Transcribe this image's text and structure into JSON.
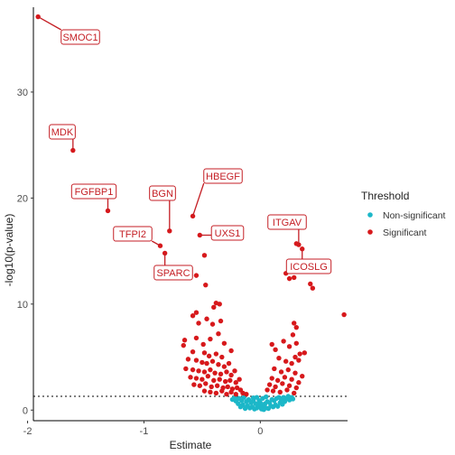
{
  "chart_data": {
    "type": "scatter",
    "title": "",
    "xlabel": "Estimate",
    "ylabel": "-log10(p-value)",
    "xlim": [
      -1.95,
      0.75
    ],
    "ylim": [
      -1.0,
      38.0
    ],
    "x_ticks": [
      -2,
      -1,
      0
    ],
    "y_ticks": [
      0,
      10,
      20,
      30
    ],
    "threshold_y": 1.3,
    "legend": {
      "title": "Threshold",
      "position": "right",
      "items": [
        {
          "label": "Non-significant",
          "color": "#1CB7C8"
        },
        {
          "label": "Significant",
          "color": "#D7191C"
        }
      ]
    },
    "colors": {
      "significant": "#D7191C",
      "non_significant": "#1CB7C8",
      "label_text": "#C41E24",
      "label_border": "#C41E24",
      "axis": "#000000"
    },
    "labeled_points": [
      {
        "label": "SMOC1",
        "x": -1.91,
        "y": 37.1
      },
      {
        "label": "MDK",
        "x": -1.61,
        "y": 24.5
      },
      {
        "label": "FGFBP1",
        "x": -1.31,
        "y": 18.8
      },
      {
        "label": "BGN",
        "x": -0.78,
        "y": 16.9
      },
      {
        "label": "HBEGF",
        "x": -0.58,
        "y": 18.3
      },
      {
        "label": "TFPI2",
        "x": -0.86,
        "y": 15.5
      },
      {
        "label": "SPARC",
        "x": -0.82,
        "y": 14.8
      },
      {
        "label": "UXS1",
        "x": -0.52,
        "y": 16.5
      },
      {
        "label": "ITGAV",
        "x": 0.33,
        "y": 15.6
      },
      {
        "label": "ICOSLG",
        "x": 0.36,
        "y": 15.2
      }
    ],
    "significant_points": [
      [
        -0.38,
        10.1
      ],
      [
        -0.35,
        10.0
      ],
      [
        -0.4,
        9.7
      ],
      [
        -0.34,
        8.4
      ],
      [
        -0.36,
        7.2
      ],
      [
        -0.55,
        9.2
      ],
      [
        -0.58,
        8.9
      ],
      [
        -0.46,
        8.6
      ],
      [
        -0.53,
        8.2
      ],
      [
        -0.41,
        8.1
      ],
      [
        -0.65,
        6.6
      ],
      [
        -0.66,
        6.1
      ],
      [
        -0.55,
        6.8
      ],
      [
        -0.49,
        6.2
      ],
      [
        -0.43,
        6.7
      ],
      [
        -0.31,
        6.3
      ],
      [
        -0.25,
        5.6
      ],
      [
        -0.58,
        5.5
      ],
      [
        -0.48,
        5.4
      ],
      [
        -0.44,
        5.1
      ],
      [
        -0.38,
        5.3
      ],
      [
        -0.33,
        5.0
      ],
      [
        -0.62,
        4.8
      ],
      [
        -0.55,
        4.7
      ],
      [
        -0.5,
        4.5
      ],
      [
        -0.46,
        4.4
      ],
      [
        -0.41,
        4.6
      ],
      [
        -0.36,
        4.3
      ],
      [
        -0.31,
        4.1
      ],
      [
        -0.27,
        4.4
      ],
      [
        -0.64,
        3.9
      ],
      [
        -0.58,
        3.8
      ],
      [
        -0.53,
        3.7
      ],
      [
        -0.48,
        3.6
      ],
      [
        -0.43,
        3.8
      ],
      [
        -0.39,
        3.5
      ],
      [
        -0.34,
        3.4
      ],
      [
        -0.29,
        3.6
      ],
      [
        -0.25,
        3.3
      ],
      [
        -0.22,
        3.7
      ],
      [
        -0.6,
        3.1
      ],
      [
        -0.55,
        3.0
      ],
      [
        -0.5,
        2.9
      ],
      [
        -0.45,
        3.2
      ],
      [
        -0.4,
        2.8
      ],
      [
        -0.35,
        2.9
      ],
      [
        -0.3,
        2.7
      ],
      [
        -0.26,
        2.8
      ],
      [
        -0.21,
        2.6
      ],
      [
        -0.18,
        2.9
      ],
      [
        -0.57,
        2.4
      ],
      [
        -0.52,
        2.3
      ],
      [
        -0.47,
        2.5
      ],
      [
        -0.42,
        2.2
      ],
      [
        -0.37,
        2.3
      ],
      [
        -0.32,
        2.1
      ],
      [
        -0.28,
        2.2
      ],
      [
        -0.24,
        2.0
      ],
      [
        -0.2,
        2.1
      ],
      [
        -0.17,
        1.9
      ],
      [
        -0.48,
        1.8
      ],
      [
        -0.43,
        1.7
      ],
      [
        -0.38,
        1.6
      ],
      [
        -0.33,
        1.8
      ],
      [
        -0.29,
        1.5
      ],
      [
        -0.25,
        1.7
      ],
      [
        -0.21,
        1.5
      ],
      [
        -0.15,
        1.6
      ],
      [
        -0.12,
        1.5
      ],
      [
        -0.55,
        12.7
      ],
      [
        -0.48,
        14.6
      ],
      [
        -0.47,
        11.8
      ],
      [
        0.1,
        6.2
      ],
      [
        0.13,
        5.7
      ],
      [
        0.2,
        6.5
      ],
      [
        0.25,
        6.0
      ],
      [
        0.31,
        6.3
      ],
      [
        0.29,
        8.2
      ],
      [
        0.31,
        7.8
      ],
      [
        0.28,
        7.1
      ],
      [
        0.3,
        5.0
      ],
      [
        0.34,
        5.3
      ],
      [
        0.16,
        4.9
      ],
      [
        0.22,
        4.6
      ],
      [
        0.27,
        4.4
      ],
      [
        0.33,
        4.7
      ],
      [
        0.38,
        5.4
      ],
      [
        0.12,
        3.9
      ],
      [
        0.18,
        3.6
      ],
      [
        0.24,
        3.8
      ],
      [
        0.3,
        3.5
      ],
      [
        0.36,
        3.2
      ],
      [
        0.1,
        3.0
      ],
      [
        0.15,
        2.8
      ],
      [
        0.21,
        3.1
      ],
      [
        0.27,
        2.9
      ],
      [
        0.33,
        2.6
      ],
      [
        0.08,
        2.4
      ],
      [
        0.13,
        2.2
      ],
      [
        0.19,
        2.5
      ],
      [
        0.25,
        2.3
      ],
      [
        0.31,
        2.1
      ],
      [
        0.06,
        1.9
      ],
      [
        0.11,
        1.8
      ],
      [
        0.17,
        1.7
      ],
      [
        0.23,
        1.9
      ],
      [
        0.29,
        1.6
      ],
      [
        0.22,
        12.9
      ],
      [
        0.25,
        12.4
      ],
      [
        0.29,
        12.5
      ],
      [
        0.43,
        11.9
      ],
      [
        0.45,
        11.5
      ],
      [
        0.72,
        9.0
      ],
      [
        0.31,
        15.7
      ]
    ],
    "nonsignificant_points": [
      [
        -0.22,
        1.2
      ],
      [
        -0.2,
        1.0
      ],
      [
        -0.18,
        1.1
      ],
      [
        -0.16,
        0.9
      ],
      [
        -0.14,
        1.2
      ],
      [
        -0.12,
        0.8
      ],
      [
        -0.1,
        1.0
      ],
      [
        -0.08,
        0.7
      ],
      [
        -0.06,
        0.9
      ],
      [
        -0.04,
        0.6
      ],
      [
        -0.02,
        0.5
      ],
      [
        0.0,
        0.3
      ],
      [
        0.02,
        0.4
      ],
      [
        0.04,
        0.6
      ],
      [
        0.06,
        0.8
      ],
      [
        0.08,
        0.7
      ],
      [
        0.1,
        1.0
      ],
      [
        0.12,
        0.9
      ],
      [
        0.14,
        1.1
      ],
      [
        0.16,
        1.2
      ],
      [
        0.18,
        1.0
      ],
      [
        0.2,
        1.2
      ],
      [
        0.22,
        1.1
      ],
      [
        0.24,
        1.3
      ],
      [
        0.27,
        1.2
      ],
      [
        -0.19,
        0.6
      ],
      [
        -0.15,
        0.5
      ],
      [
        -0.11,
        0.4
      ],
      [
        -0.07,
        0.3
      ],
      [
        -0.03,
        0.2
      ],
      [
        0.01,
        0.1
      ],
      [
        0.05,
        0.2
      ],
      [
        0.09,
        0.4
      ],
      [
        0.13,
        0.5
      ],
      [
        0.17,
        0.7
      ],
      [
        -0.09,
        0.2
      ],
      [
        -0.05,
        0.1
      ],
      [
        0.03,
        0.05
      ],
      [
        0.07,
        0.15
      ],
      [
        0.11,
        0.3
      ],
      [
        -0.17,
        0.3
      ],
      [
        -0.13,
        0.15
      ],
      [
        0.15,
        0.35
      ],
      [
        0.19,
        0.55
      ],
      [
        0.21,
        0.8
      ],
      [
        -0.24,
        1.0
      ],
      [
        -0.21,
        0.85
      ],
      [
        0.25,
        0.95
      ],
      [
        0.28,
        1.05
      ],
      [
        0.0,
        0.7
      ],
      [
        -0.01,
        0.9
      ],
      [
        0.02,
        1.1
      ],
      [
        -0.03,
        1.2
      ],
      [
        0.05,
        1.25
      ],
      [
        -0.06,
        1.15
      ]
    ]
  }
}
